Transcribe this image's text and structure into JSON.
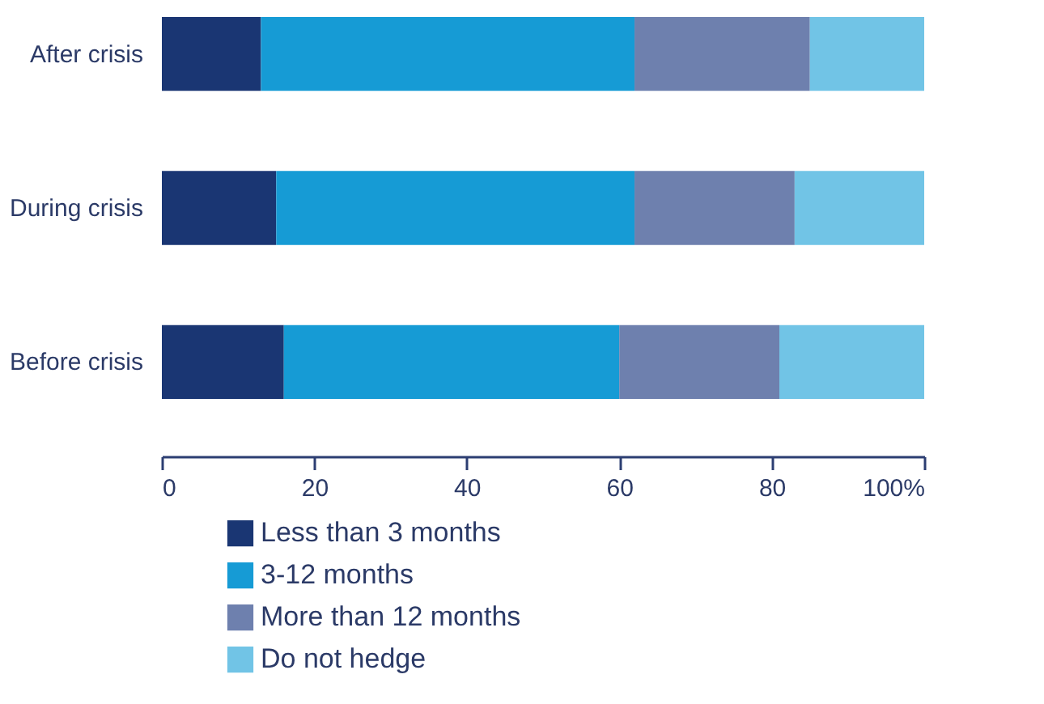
{
  "chart_data": {
    "type": "bar",
    "orientation": "horizontal",
    "stacked": true,
    "categories": [
      "After crisis",
      "During crisis",
      "Before crisis"
    ],
    "series": [
      {
        "name": "Less than 3 months",
        "color": "#1a3673",
        "values": [
          13,
          15,
          16
        ]
      },
      {
        "name": "3-12 months",
        "color": "#169bd5",
        "values": [
          49,
          47,
          44
        ]
      },
      {
        "name": "More than 12 months",
        "color": "#6e80ae",
        "values": [
          23,
          21,
          21
        ]
      },
      {
        "name": "Do not hedge",
        "color": "#71c4e6",
        "values": [
          15,
          17,
          19
        ]
      }
    ],
    "xlim": [
      0,
      100
    ],
    "xticks": [
      0,
      20,
      40,
      60,
      80,
      {
        "value": 100,
        "label": "100%"
      }
    ],
    "grid": false,
    "legend": "bottom"
  }
}
